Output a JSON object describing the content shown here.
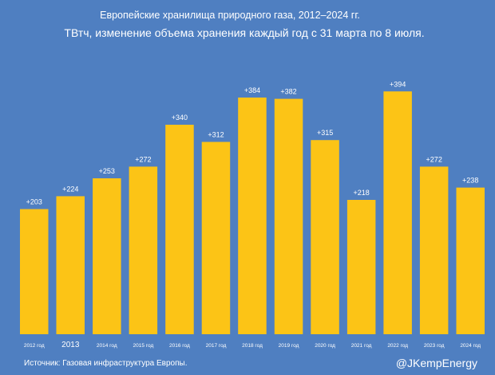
{
  "title": "Европейские хранилища природного газа, 2012–2024 гг.",
  "subtitle": "ТВтч, изменение объема хранения каждый год с 31 марта по 8 июля.",
  "source": "Источник: Газовая инфраструктура Европы.",
  "handle": "@JKempEnergy",
  "colors": {
    "background": "#4f7fc1",
    "bar": "#fcc416",
    "text": "#ffffff"
  },
  "chart_data": {
    "type": "bar",
    "title": "Европейские хранилища природного газа, 2012–2024 гг.",
    "subtitle": "ТВтч, изменение объема хранения каждый год с 31 марта по 8 июля.",
    "categories": [
      "2012 год",
      "2013",
      "2014 год",
      "2015 год",
      "2016 год",
      "2017 год",
      "2018 год",
      "2019 год",
      "2020 год",
      "2021 год",
      "2022 год",
      "2023 год",
      "2024 год"
    ],
    "values": [
      203,
      224,
      253,
      272,
      340,
      312,
      384,
      382,
      315,
      218,
      394,
      272,
      238
    ],
    "labels": [
      "+203",
      "+224",
      "+253",
      "+272",
      "+340",
      "+312",
      "+384",
      "+382",
      "+315",
      "+218",
      "+394",
      "+272",
      "+238"
    ],
    "xlabel": "",
    "ylabel": "ТВтч",
    "ylim": [
      0,
      410
    ],
    "grid": false,
    "legend": "none"
  }
}
